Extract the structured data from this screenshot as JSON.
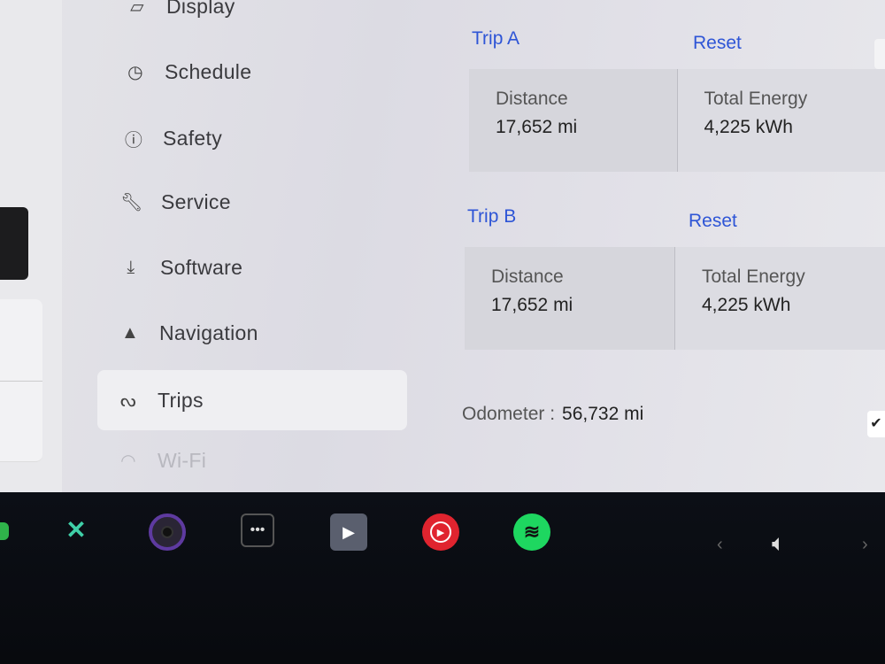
{
  "sidebar": {
    "items": [
      {
        "label": "Display",
        "icon": "display-icon"
      },
      {
        "label": "Schedule",
        "icon": "schedule-icon"
      },
      {
        "label": "Safety",
        "icon": "safety-icon"
      },
      {
        "label": "Service",
        "icon": "wrench-icon"
      },
      {
        "label": "Software",
        "icon": "download-icon"
      },
      {
        "label": "Navigation",
        "icon": "navigation-arrow-icon"
      },
      {
        "label": "Trips",
        "icon": "trips-icon",
        "active": true
      },
      {
        "label": "Wi-Fi",
        "icon": "wifi-icon"
      }
    ]
  },
  "trip_a": {
    "label": "Trip A",
    "reset": "Reset",
    "distance_label": "Distance",
    "distance": "17,652 mi",
    "energy_label": "Total Energy",
    "energy": "4,225 kWh"
  },
  "trip_b": {
    "label": "Trip B",
    "reset": "Reset",
    "distance_label": "Distance",
    "distance": "17,652 mi",
    "energy_label": "Total Energy",
    "energy": "4,225 kWh"
  },
  "odometer": {
    "label": "Odometer :",
    "value": "56,732 mi"
  },
  "dock": {
    "icons": [
      "shuffle-icon",
      "camera-icon",
      "more-icon",
      "theater-icon",
      "youtube-music-icon",
      "spotify-icon",
      "chevron-left-icon",
      "volume-icon",
      "chevron-right-icon"
    ]
  },
  "colors": {
    "accent": "#2e55d6",
    "spotify": "#1ed760",
    "youtube_music": "#e0242f"
  }
}
